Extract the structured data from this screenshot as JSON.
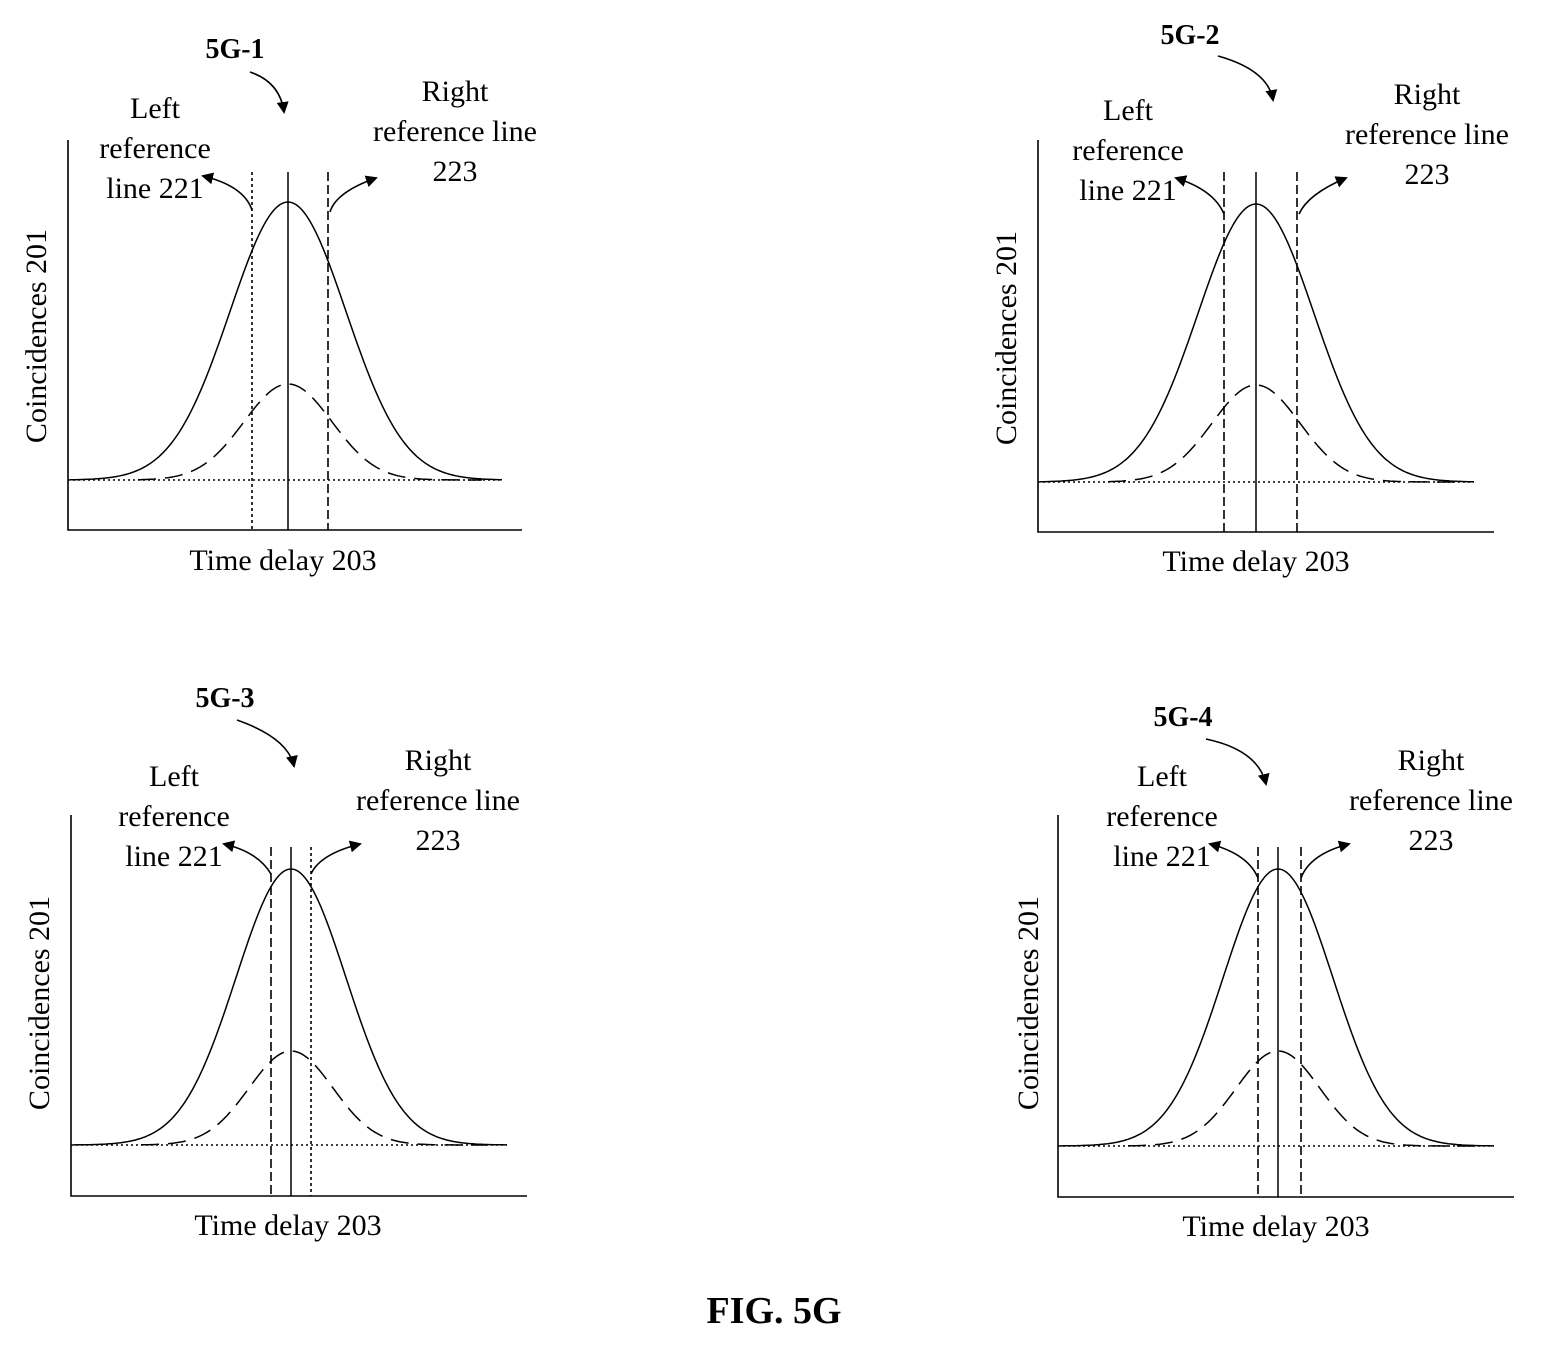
{
  "figure_caption": "FIG. 5G",
  "panels": [
    {
      "id": "5G-1",
      "left_label": [
        "Left",
        "reference",
        "line 221"
      ],
      "right_label": [
        "Right",
        "reference line",
        "223"
      ],
      "ylabel": "Coincidences 201",
      "xlabel": "Time delay 203",
      "left_line_style": "dotted-dash",
      "right_line_style": "dashed"
    },
    {
      "id": "5G-2",
      "left_label": [
        "Left",
        "reference",
        "line 221"
      ],
      "right_label": [
        "Right",
        "reference line",
        "223"
      ],
      "ylabel": "Coincidences 201",
      "xlabel": "Time delay 203",
      "left_line_style": "dashed",
      "right_line_style": "dashed"
    },
    {
      "id": "5G-3",
      "left_label": [
        "Left",
        "reference",
        "line 221"
      ],
      "right_label": [
        "Right",
        "reference line",
        "223"
      ],
      "ylabel": "Coincidences 201",
      "xlabel": "Time delay 203",
      "left_line_style": "dashed",
      "right_line_style": "dotted-dash"
    },
    {
      "id": "5G-4",
      "left_label": [
        "Left",
        "reference",
        "line 221"
      ],
      "right_label": [
        "Right",
        "reference line",
        "223"
      ],
      "ylabel": "Coincidences 201",
      "xlabel": "Time delay 203",
      "left_line_style": "dashed",
      "right_line_style": "dashed"
    }
  ]
}
